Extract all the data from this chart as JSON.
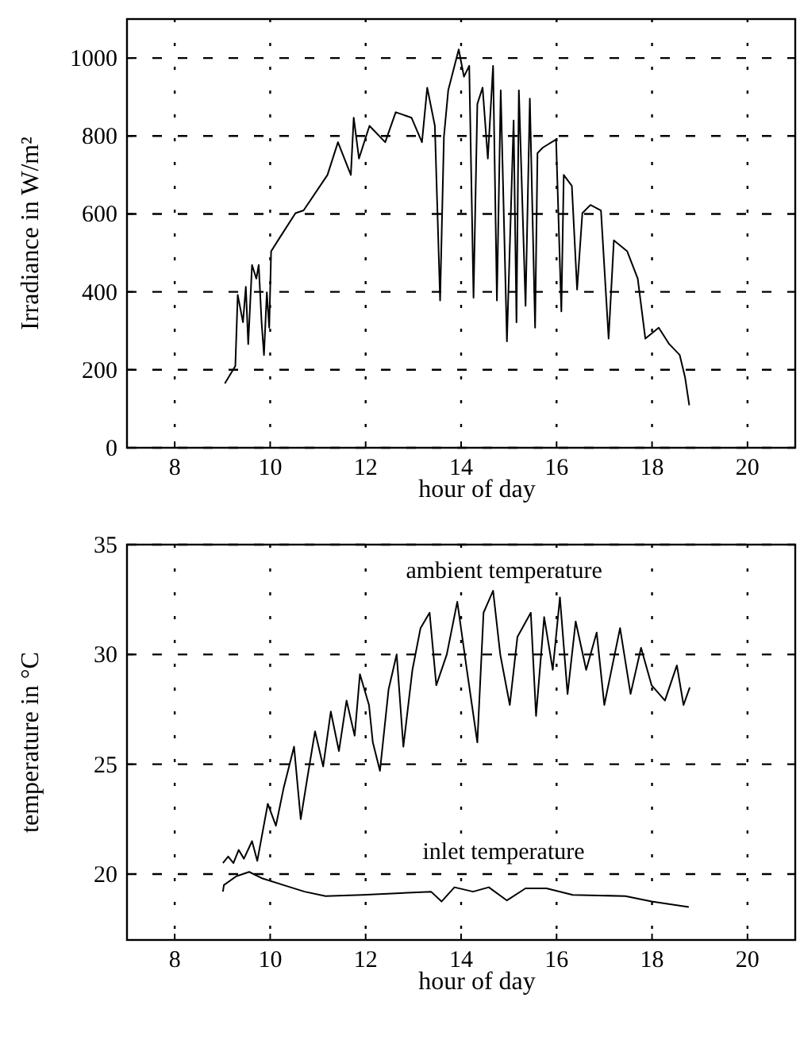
{
  "chart_data": [
    {
      "type": "line",
      "xlabel": "hour of day",
      "ylabel": "Irradiance in W/m²",
      "xlim": [
        7,
        21
      ],
      "ylim": [
        0,
        1100
      ],
      "xticks": [
        8,
        10,
        12,
        14,
        16,
        18,
        20
      ],
      "yticks": [
        0,
        200,
        400,
        600,
        800,
        1000
      ],
      "grid": true,
      "line_style": "solid",
      "series": [
        {
          "color": "#000000",
          "x": [
            9.05,
            9.27,
            9.32,
            9.43,
            9.49,
            9.54,
            9.62,
            9.71,
            9.76,
            9.82,
            9.87,
            9.93,
            9.98,
            10.02,
            10.2,
            10.53,
            10.7,
            11.2,
            11.42,
            11.69,
            11.75,
            11.86,
            12.08,
            12.41,
            12.63,
            12.96,
            13.18,
            13.29,
            13.45,
            13.56,
            13.64,
            13.73,
            13.95,
            14.06,
            14.17,
            14.26,
            14.34,
            14.45,
            14.56,
            14.67,
            14.75,
            14.83,
            14.96,
            15.1,
            15.16,
            15.21,
            15.35,
            15.44,
            15.55,
            15.6,
            15.71,
            15.99,
            16.1,
            16.15,
            16.32,
            16.43,
            16.54,
            16.71,
            16.93,
            17.09,
            17.2,
            17.48,
            17.7,
            17.86,
            18.14,
            18.36,
            18.58,
            18.69,
            18.78
          ],
          "values": [
            165,
            210,
            392,
            322,
            413,
            266,
            469,
            434,
            469,
            322,
            238,
            399,
            308,
            504,
            539,
            602,
            609,
            700,
            784,
            700,
            847,
            742,
            826,
            784,
            861,
            847,
            784,
            924,
            826,
            378,
            798,
            917,
            1022,
            952,
            980,
            385,
            882,
            924,
            742,
            980,
            378,
            917,
            273,
            840,
            322,
            917,
            364,
            896,
            308,
            756,
            770,
            791,
            350,
            700,
            672,
            406,
            602,
            623,
            609,
            280,
            532,
            504,
            434,
            280,
            308,
            266,
            238,
            182,
            109
          ]
        }
      ]
    },
    {
      "type": "line",
      "xlabel": "hour of day",
      "ylabel": "temperature in °C",
      "xlim": [
        7,
        21
      ],
      "ylim": [
        17,
        35
      ],
      "xticks": [
        8,
        10,
        12,
        14,
        16,
        18,
        20
      ],
      "yticks": [
        20,
        25,
        30,
        35
      ],
      "grid": true,
      "line_style": "solid",
      "series": [
        {
          "name": "ambient temperature",
          "color": "#000000",
          "x": [
            9.01,
            9.12,
            9.23,
            9.34,
            9.45,
            9.62,
            9.73,
            9.95,
            10.12,
            10.28,
            10.5,
            10.64,
            10.78,
            10.94,
            11.11,
            11.27,
            11.44,
            11.6,
            11.77,
            11.88,
            12.07,
            12.15,
            12.3,
            12.48,
            12.65,
            12.79,
            12.98,
            13.15,
            13.34,
            13.48,
            13.7,
            13.92,
            14.12,
            14.34,
            14.47,
            14.67,
            14.82,
            15.02,
            15.18,
            15.46,
            15.57,
            15.74,
            15.92,
            16.07,
            16.23,
            16.4,
            16.62,
            16.84,
            17.0,
            17.33,
            17.55,
            17.77,
            17.99,
            18.27,
            18.52,
            18.66,
            18.79
          ],
          "values": [
            20.5,
            20.8,
            20.5,
            21.1,
            20.7,
            21.5,
            20.6,
            23.2,
            22.2,
            23.9,
            25.8,
            22.5,
            24.4,
            26.5,
            24.9,
            27.4,
            25.6,
            27.9,
            26.3,
            29.1,
            27.7,
            26.0,
            24.7,
            28.4,
            30.0,
            25.8,
            29.3,
            31.2,
            31.9,
            28.6,
            30.0,
            32.4,
            29.3,
            26.0,
            31.9,
            32.9,
            30.0,
            27.7,
            30.8,
            31.9,
            27.2,
            31.7,
            29.3,
            32.6,
            28.2,
            31.5,
            29.3,
            31.0,
            27.7,
            31.2,
            28.2,
            30.3,
            28.6,
            27.9,
            29.5,
            27.7,
            28.5
          ]
        },
        {
          "name": "inlet temperature",
          "color": "#000000",
          "x": [
            9.01,
            9.03,
            9.29,
            9.56,
            9.84,
            10.28,
            10.72,
            11.16,
            11.93,
            13.37,
            13.59,
            13.86,
            14.25,
            14.58,
            14.96,
            15.35,
            15.79,
            16.34,
            17.44,
            17.99,
            18.77
          ],
          "values": [
            19.2,
            19.5,
            19.9,
            20.1,
            19.8,
            19.5,
            19.2,
            19.0,
            19.05,
            19.2,
            18.75,
            19.4,
            19.2,
            19.4,
            18.8,
            19.35,
            19.35,
            19.05,
            19.0,
            18.75,
            18.5
          ]
        }
      ]
    }
  ]
}
